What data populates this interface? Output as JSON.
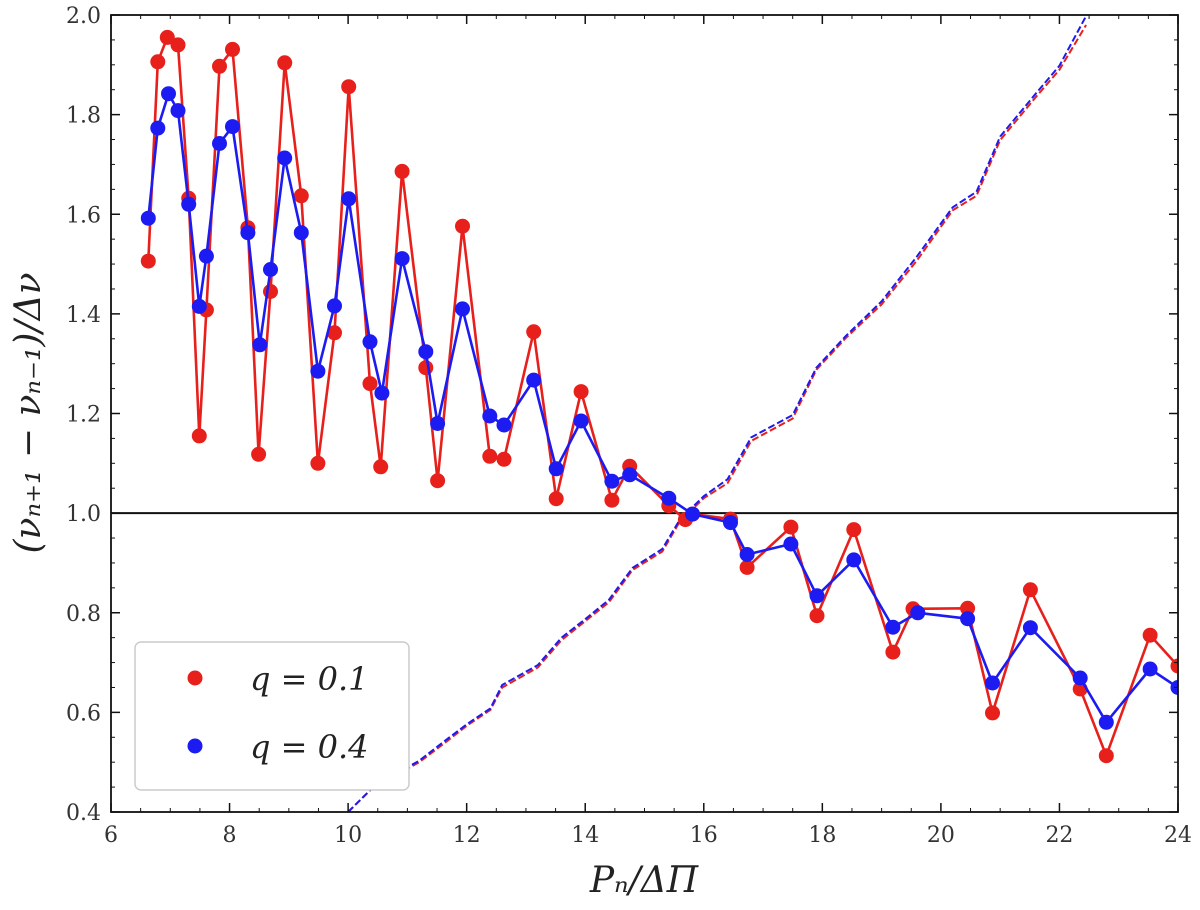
{
  "chart_data": {
    "type": "line",
    "title": "",
    "xlabel": "P_n/ΔΠ",
    "ylabel": "(ν_{n+1} − ν_{n−1})/Δν",
    "xlabel_display": "Pₙ/ΔΠ",
    "ylabel_display": "(νₙ₊₁ − νₙ₋₁)/Δν",
    "xlim": [
      6,
      24
    ],
    "ylim": [
      0.4,
      2.0
    ],
    "xticks": [
      6,
      8,
      10,
      12,
      14,
      16,
      18,
      20,
      22,
      24
    ],
    "yticks": [
      0.4,
      0.6,
      0.8,
      1.0,
      1.2,
      1.4,
      1.6,
      1.8,
      2.0
    ],
    "xtick_labels": [
      "6",
      "8",
      "10",
      "12",
      "14",
      "16",
      "18",
      "20",
      "22",
      "24"
    ],
    "ytick_labels": [
      "0.4",
      "0.6",
      "0.8",
      "1.0",
      "1.2",
      "1.4",
      "1.6",
      "1.8",
      "2.0"
    ],
    "hline": 1.0,
    "legend": {
      "position": "lower-left",
      "entries": [
        "q = 0.1",
        "q = 0.4"
      ]
    },
    "series": [
      {
        "name": "q = 0.1",
        "color": "#e8201c",
        "x": [
          6.63,
          6.79,
          6.95,
          7.13,
          7.31,
          7.49,
          7.61,
          7.83,
          8.05,
          8.31,
          8.49,
          8.69,
          8.93,
          9.21,
          9.49,
          9.77,
          10.01,
          10.37,
          10.55,
          10.91,
          11.31,
          11.51,
          11.93,
          12.39,
          12.63,
          13.13,
          13.51,
          13.93,
          14.45,
          14.75,
          15.41,
          15.69,
          15.81,
          16.45,
          16.73,
          17.47,
          17.91,
          18.53,
          19.19,
          19.53,
          20.45,
          20.87,
          21.51,
          22.35,
          22.79,
          23.53,
          24.0
        ],
        "y": [
          1.506,
          1.906,
          1.955,
          1.94,
          1.632,
          1.155,
          1.408,
          1.897,
          1.931,
          1.573,
          1.118,
          1.445,
          1.904,
          1.637,
          1.1,
          1.362,
          1.856,
          1.26,
          1.093,
          1.686,
          1.292,
          1.065,
          1.576,
          1.114,
          1.108,
          1.364,
          1.029,
          1.244,
          1.026,
          1.094,
          1.015,
          0.987,
          0.998,
          0.988,
          0.891,
          0.972,
          0.794,
          0.967,
          0.721,
          0.808,
          0.809,
          0.599,
          0.846,
          0.647,
          0.513,
          0.755,
          0.693
        ]
      },
      {
        "name": "q = 0.4",
        "color": "#1b1bf2",
        "x": [
          6.63,
          6.79,
          6.97,
          7.13,
          7.31,
          7.49,
          7.61,
          7.83,
          8.05,
          8.31,
          8.51,
          8.69,
          8.93,
          9.21,
          9.49,
          9.77,
          10.01,
          10.37,
          10.57,
          10.91,
          11.31,
          11.51,
          11.93,
          12.39,
          12.63,
          13.13,
          13.51,
          13.93,
          14.45,
          14.75,
          15.41,
          15.81,
          16.45,
          16.73,
          17.47,
          17.91,
          18.53,
          19.19,
          19.61,
          20.45,
          20.87,
          21.51,
          22.35,
          22.79,
          23.53,
          24.0
        ],
        "y": [
          1.592,
          1.773,
          1.842,
          1.808,
          1.62,
          1.415,
          1.516,
          1.742,
          1.776,
          1.563,
          1.338,
          1.489,
          1.713,
          1.563,
          1.285,
          1.416,
          1.631,
          1.344,
          1.241,
          1.511,
          1.324,
          1.18,
          1.41,
          1.195,
          1.177,
          1.267,
          1.089,
          1.185,
          1.064,
          1.077,
          1.03,
          0.998,
          0.981,
          0.917,
          0.938,
          0.834,
          0.906,
          0.771,
          0.8,
          0.788,
          0.659,
          0.77,
          0.669,
          0.58,
          0.687,
          0.65
        ]
      }
    ],
    "dashed_series": [
      {
        "name": "q = 0.1 (dashed)",
        "color": "#e8201c",
        "x": [
          10.0,
          10.4,
          10.8,
          11.2,
          11.6,
          12.0,
          12.4,
          12.6,
          13.2,
          13.6,
          14.0,
          14.4,
          14.8,
          15.3,
          15.6,
          16.0,
          16.4,
          16.8,
          17.5,
          17.9,
          18.4,
          19.0,
          19.6,
          20.2,
          20.6,
          21.0,
          21.6,
          22.0,
          22.45
        ],
        "y": [
          0.4,
          0.447,
          0.474,
          0.5,
          0.536,
          0.573,
          0.605,
          0.65,
          0.69,
          0.745,
          0.783,
          0.821,
          0.886,
          0.923,
          0.984,
          1.03,
          1.06,
          1.145,
          1.19,
          1.288,
          1.352,
          1.419,
          1.508,
          1.608,
          1.637,
          1.749,
          1.835,
          1.89,
          1.98
        ]
      },
      {
        "name": "q = 0.4 (dashed)",
        "color": "#1b1bf2",
        "x": [
          10.0,
          10.4,
          10.8,
          11.2,
          11.6,
          12.0,
          12.4,
          12.6,
          13.2,
          13.6,
          14.0,
          14.4,
          14.8,
          15.3,
          15.6,
          16.0,
          16.4,
          16.8,
          17.5,
          17.9,
          18.4,
          19.0,
          19.6,
          20.2,
          20.6,
          21.0,
          21.6,
          22.0,
          22.45
        ],
        "y": [
          0.4,
          0.447,
          0.476,
          0.503,
          0.54,
          0.576,
          0.608,
          0.655,
          0.695,
          0.75,
          0.787,
          0.826,
          0.89,
          0.928,
          0.988,
          1.034,
          1.068,
          1.152,
          1.197,
          1.292,
          1.356,
          1.425,
          1.516,
          1.614,
          1.645,
          1.756,
          1.842,
          1.898,
          1.998
        ]
      }
    ]
  }
}
